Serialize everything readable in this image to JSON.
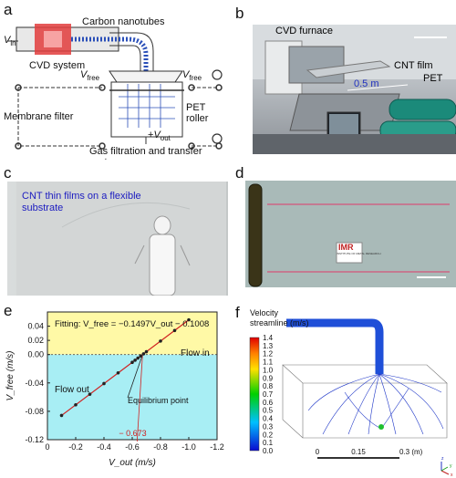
{
  "panel_labels": {
    "a": "a",
    "b": "b",
    "c": "c",
    "d": "d",
    "e": "e",
    "f": "f"
  },
  "panel_a": {
    "v_in_main": "V",
    "v_in_sub": "in",
    "carbon_nanotubes": "Carbon nanotubes",
    "cvd_system": "CVD system",
    "membrane_filter": "Membrane filter",
    "v_free_main": "V",
    "v_free_sub": "free",
    "v_out_prefix": "+",
    "v_out_main": "V",
    "v_out_sub": "out",
    "pet_roller_line1": "PET",
    "pet_roller_line2": "roller",
    "caption": "Gas filtration and transfer system"
  },
  "panel_b": {
    "cvd_furnace": "CVD furnace",
    "cnt_film": "CNT film",
    "pet": "PET",
    "length": "0.5 m"
  },
  "panel_c": {
    "annotation_line1": "CNT thin films on a flexible",
    "annotation_line2": "substrate"
  },
  "panel_d": {
    "logo_text": "IMR",
    "logo_sub": "INSTITUTE OF METAL RESEARCH"
  },
  "panel_f": {
    "title_line1": "Velocity",
    "title_line2": "streamline (m/s)",
    "colorbar_ticks": [
      "1.4",
      "1.3",
      "1.2",
      "1.1",
      "1.0",
      "0.9",
      "0.8",
      "0.7",
      "0.6",
      "0.5",
      "0.4",
      "0.3",
      "0.2",
      "0.1",
      "0.0"
    ],
    "scale_labels": [
      "0",
      "0.15",
      "0.3 (m)"
    ],
    "axis_labels": [
      "z",
      "x",
      "y"
    ]
  },
  "chart_data": {
    "type": "line",
    "title": "",
    "fit_label": "Fitting:",
    "fit_equation": "V_free = −0.1497V_out − 0.1008",
    "xlabel": "V_out (m/s)",
    "ylabel": "V_free (m/s)",
    "xlim": [
      0,
      -1.2
    ],
    "ylim": [
      -0.12,
      0.06
    ],
    "x_ticks": [
      "0",
      "-0.2",
      "-0.4",
      "-0.6",
      "-0.8",
      "-1.0",
      "-1.2"
    ],
    "y_ticks": [
      "0.04",
      "0.02",
      "0.00",
      "-0.04",
      "-0.08",
      "-0.12"
    ],
    "regions": {
      "flow_in": "Flow in",
      "flow_out": "Flow out"
    },
    "annotations": {
      "equilibrium": "Equilibrium point",
      "equilibrium_x": "− 0.673"
    },
    "colors": {
      "flow_in_bg": "#fff9a6",
      "flow_out_bg": "#a8eef4",
      "fit_line": "#d02020",
      "points": "#222222"
    },
    "series": [
      {
        "x": [
          -0.1,
          -0.2,
          -0.3,
          -0.4,
          -0.5,
          -0.6,
          -0.62,
          -0.64,
          -0.66,
          -0.68,
          -0.7,
          -0.8,
          -0.9,
          -1.0
        ],
        "y": [
          -0.0858,
          -0.0709,
          -0.0559,
          -0.0409,
          -0.0259,
          -0.011,
          -0.008,
          -0.005,
          -0.002,
          0.001,
          0.004,
          0.019,
          0.0339,
          0.0489
        ]
      }
    ]
  }
}
